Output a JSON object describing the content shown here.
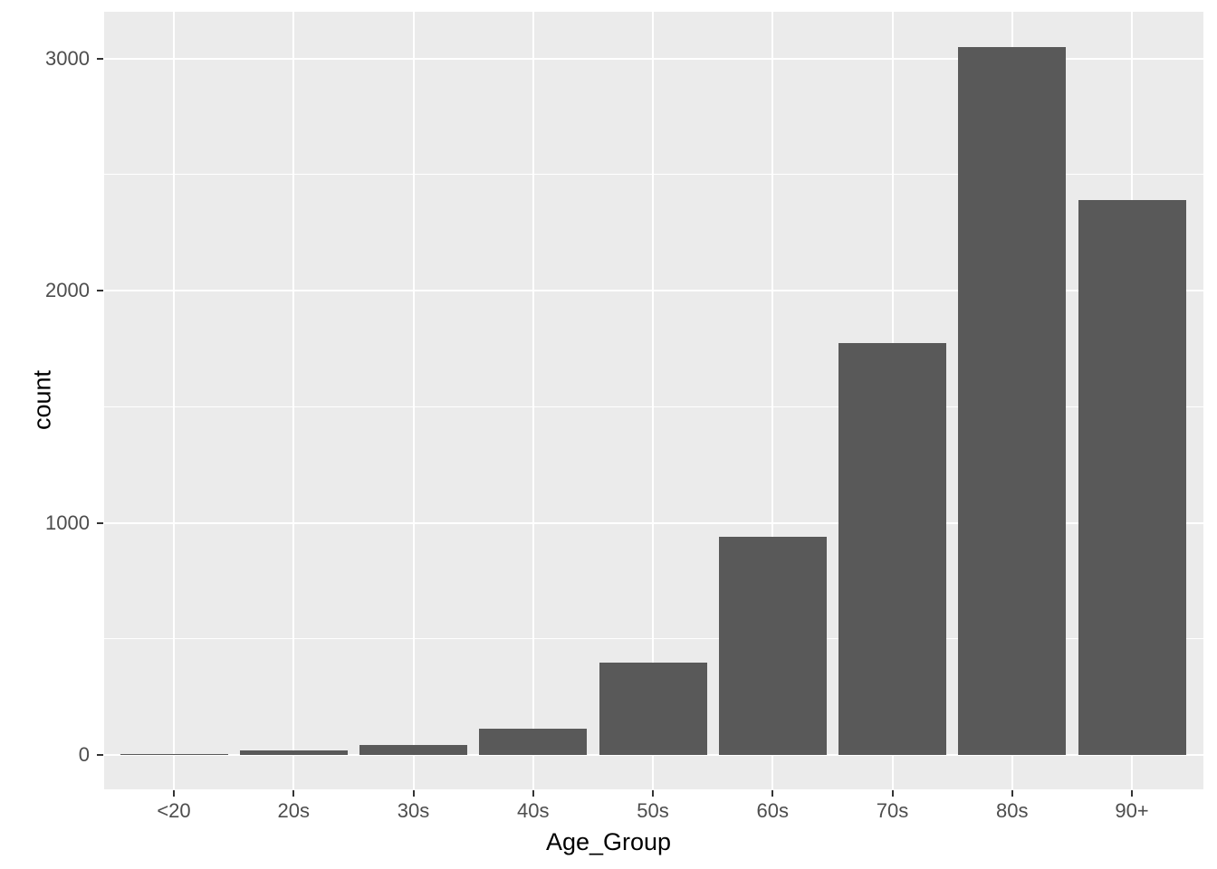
{
  "chart_data": {
    "type": "bar",
    "title": "",
    "xlabel": "Age_Group",
    "ylabel": "count",
    "categories": [
      "<20",
      "20s",
      "30s",
      "40s",
      "50s",
      "60s",
      "70s",
      "80s",
      "90+"
    ],
    "values": [
      5,
      20,
      43,
      113,
      398,
      940,
      1775,
      3050,
      2390
    ],
    "y_ticks": [
      0,
      1000,
      2000,
      3000
    ],
    "y_minor_ticks": [
      500,
      1500,
      2500
    ],
    "ylim": [
      -152,
      3202
    ],
    "grid": "major-and-minor, white on grey panel",
    "legend_position": "none",
    "style": "ggplot2-default-theme",
    "colors": {
      "bar_fill": "#595959",
      "panel_background": "#EBEBEB",
      "gridline": "#FFFFFF",
      "axis_text": "#4D4D4D",
      "axis_title": "#000000",
      "tick_mark": "#333333",
      "page_background": "#FFFFFF"
    }
  }
}
